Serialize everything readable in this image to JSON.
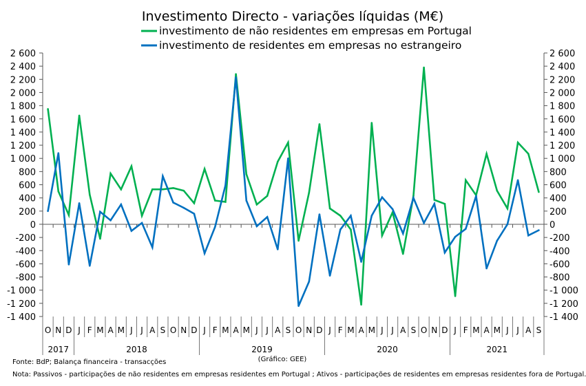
{
  "chart_data": {
    "type": "line",
    "title": "Investimento Directo - variações líquidas (M€)",
    "ylim": [
      -1400,
      2600
    ],
    "ytick_step": 200,
    "grid": false,
    "legend_placement": "top-center",
    "months": [
      "O",
      "N",
      "D",
      "J",
      "F",
      "M",
      "A",
      "M",
      "J",
      "J",
      "A",
      "S",
      "O",
      "N",
      "D",
      "J",
      "F",
      "M",
      "A",
      "M",
      "J",
      "J",
      "A",
      "S",
      "O",
      "N",
      "D",
      "J",
      "F",
      "M",
      "A",
      "M",
      "J",
      "J",
      "A",
      "S",
      "O",
      "N",
      "D",
      "J",
      "F",
      "M",
      "A",
      "M",
      "J",
      "J",
      "A",
      "S"
    ],
    "years": [
      {
        "label": "2017",
        "count": 3
      },
      {
        "label": "2018",
        "count": 12
      },
      {
        "label": "2019",
        "count": 12
      },
      {
        "label": "2020",
        "count": 12
      },
      {
        "label": "2021",
        "count": 9
      }
    ],
    "series": [
      {
        "name": "investimento de não residentes em empresas em Portugal",
        "color": "#00b050",
        "values": [
          1750,
          500,
          140,
          1650,
          450,
          -220,
          770,
          530,
          880,
          130,
          530,
          530,
          550,
          510,
          320,
          840,
          360,
          340,
          2280,
          760,
          300,
          430,
          950,
          1240,
          -250,
          480,
          1520,
          240,
          130,
          -80,
          -1220,
          1540,
          -170,
          180,
          -450,
          430,
          2380,
          370,
          310,
          -1090,
          670,
          440,
          1070,
          510,
          240,
          1240,
          1070,
          490
        ]
      },
      {
        "name": "investimento de residentes em empresas no estrangeiro",
        "color": "#0070c0",
        "values": [
          200,
          1080,
          -610,
          320,
          -630,
          190,
          60,
          300,
          -100,
          20,
          -350,
          730,
          330,
          250,
          160,
          -440,
          -40,
          590,
          2230,
          360,
          -30,
          110,
          -380,
          1000,
          -1240,
          -870,
          150,
          -780,
          -80,
          130,
          -570,
          130,
          410,
          230,
          -140,
          400,
          20,
          310,
          -430,
          -190,
          -70,
          430,
          -670,
          -250,
          0,
          670,
          -170,
          -90
        ]
      }
    ]
  },
  "footer": {
    "source": "Fonte: BdP; Balança financeira - transacções",
    "credit": "(Gráfico: GEE)",
    "note": "Nota: Passivos - participações de não residentes em empresas residentes em Portugal ; Ativos - participações de residentes em empresas residentes fora de Portugal."
  }
}
